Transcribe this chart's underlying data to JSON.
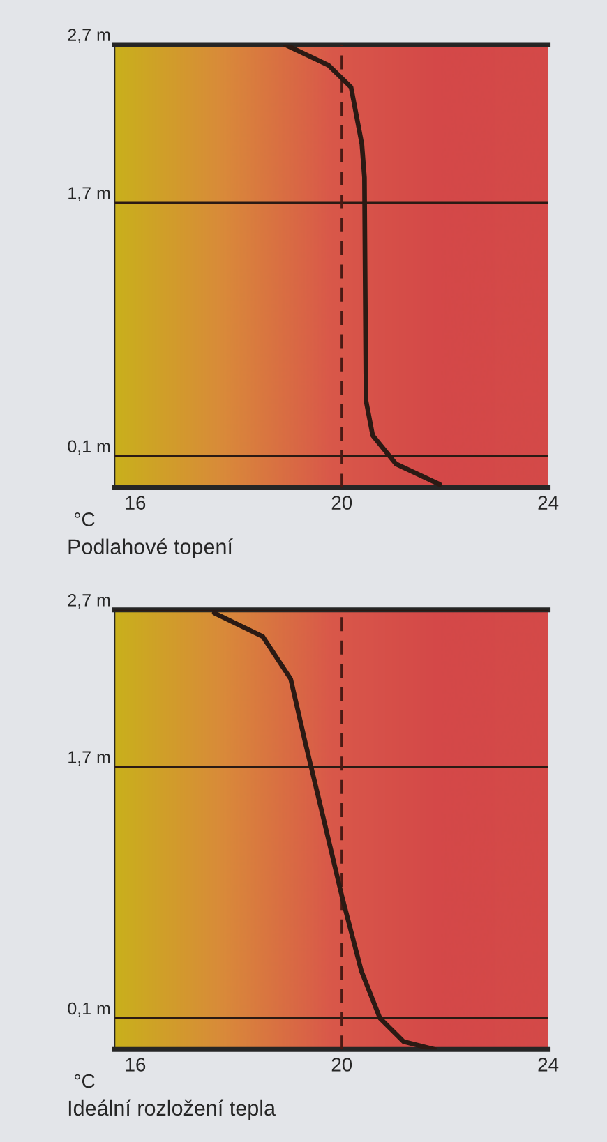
{
  "chart_data": [
    {
      "type": "line",
      "title": "Podlahové topení",
      "xlabel": "°C",
      "series": [
        {
          "color": "#2b1a14",
          "x": [
            18.9,
            19.74,
            20.18,
            20.39,
            20.44,
            20.47,
            20.6,
            21.05,
            21.9
          ],
          "values": [
            2.7,
            2.57,
            2.43,
            2.07,
            1.86,
            0.45,
            0.23,
            0.05,
            -0.08
          ]
        }
      ],
      "xlim": [
        15.6,
        24
      ],
      "xticks": [
        16,
        20,
        24
      ],
      "ylim": [
        -0.1,
        2.7
      ],
      "yticks": [
        {
          "value": 0.1,
          "label": "0,1 m"
        },
        {
          "value": 1.7,
          "label": "1,7 m"
        },
        {
          "value": 2.7,
          "label": "2,7 m"
        }
      ],
      "grid": "y",
      "legend": false,
      "marker": "none",
      "line_style": "solid",
      "ref_lines": [
        {
          "axis": "x",
          "value": 20,
          "color": "#4a1a14",
          "line_style": "dashed"
        }
      ]
    },
    {
      "type": "line",
      "title": "Ideální rozložení tepla",
      "xlabel": "°C",
      "series": [
        {
          "color": "#2b1a14",
          "x": [
            17.53,
            18.47,
            19.01,
            19.29,
            19.64,
            20.0,
            20.38,
            20.74,
            21.2,
            21.8
          ],
          "values": [
            2.68,
            2.53,
            2.26,
            1.86,
            1.38,
            0.88,
            0.4,
            0.1,
            -0.05,
            -0.1
          ]
        }
      ],
      "xlim": [
        15.6,
        24
      ],
      "xticks": [
        16,
        20,
        24
      ],
      "ylim": [
        -0.1,
        2.7
      ],
      "yticks": [
        {
          "value": 0.1,
          "label": "0,1 m"
        },
        {
          "value": 1.7,
          "label": "1,7 m"
        },
        {
          "value": 2.7,
          "label": "2,7 m"
        }
      ],
      "grid": "y",
      "legend": false,
      "marker": "none",
      "line_style": "solid",
      "ref_lines": [
        {
          "axis": "x",
          "value": 20,
          "color": "#4a1a14",
          "line_style": "dashed"
        }
      ]
    }
  ]
}
